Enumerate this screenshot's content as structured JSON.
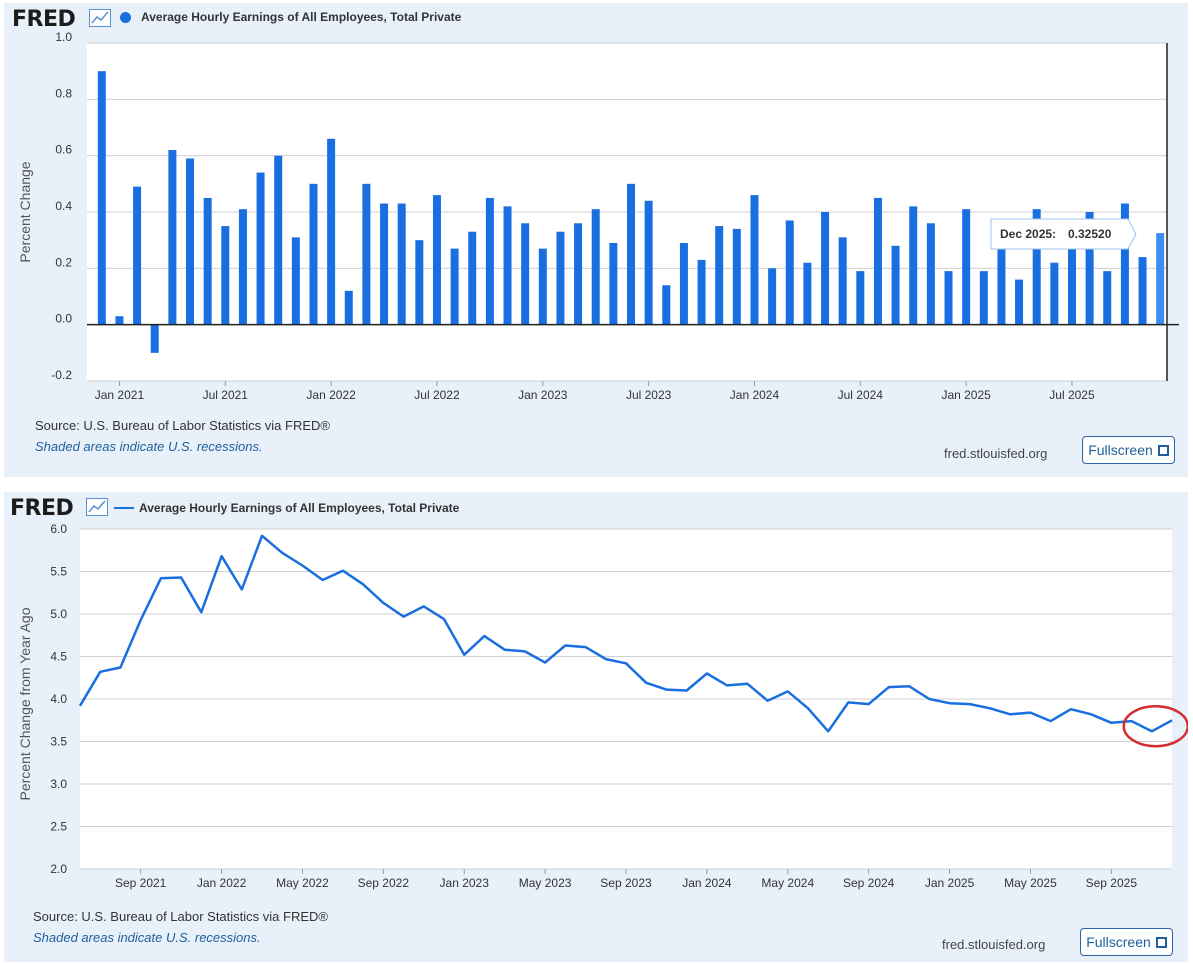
{
  "logo_text": "FRED",
  "site": "fred.stlouisfed.org",
  "source": "Source: U.S. Bureau of Labor Statistics via FRED®",
  "recession_note": "Shaded areas indicate U.S. recessions.",
  "fullscreen_label": "Fullscreen",
  "colors": {
    "series": "#1a6fe0",
    "panel_bg": "#e8f1fa",
    "highlight_circle": "#d42d2d"
  },
  "chart_data": [
    {
      "type": "bar",
      "title": "Average Hourly Earnings of All Employees, Total Private",
      "ylabel": "Percent Change",
      "xlabel": "",
      "ylim": [
        -0.2,
        1.0
      ],
      "yticks": [
        1.0,
        0.8,
        0.6,
        0.4,
        0.2,
        0.0,
        -0.2
      ],
      "ytick_labels": [
        "1.0",
        "0.8",
        "0.6",
        "0.4",
        "0.2",
        "0.0",
        "-0.2"
      ],
      "grid": true,
      "legend": "top-left",
      "x_tick_labels": [
        {
          "label": "Jan 2021",
          "index": 1
        },
        {
          "label": "Jul 2021",
          "index": 7
        },
        {
          "label": "Jan 2022",
          "index": 13
        },
        {
          "label": "Jul 2022",
          "index": 19
        },
        {
          "label": "Jan 2023",
          "index": 25
        },
        {
          "label": "Jul 2023",
          "index": 31
        },
        {
          "label": "Jan 2024",
          "index": 37
        },
        {
          "label": "Jul 2024",
          "index": 43
        },
        {
          "label": "Jan 2025",
          "index": 49
        },
        {
          "label": "Jul 2025",
          "index": 55
        }
      ],
      "start": "Dec 2020",
      "values": [
        0.9,
        0.03,
        0.49,
        -0.1,
        0.62,
        0.59,
        0.45,
        0.35,
        0.41,
        0.54,
        0.6,
        0.31,
        0.5,
        0.66,
        0.12,
        0.5,
        0.43,
        0.43,
        0.3,
        0.46,
        0.27,
        0.33,
        0.45,
        0.42,
        0.36,
        0.27,
        0.33,
        0.36,
        0.41,
        0.29,
        0.5,
        0.44,
        0.14,
        0.29,
        0.23,
        0.35,
        0.34,
        0.46,
        0.2,
        0.37,
        0.22,
        0.4,
        0.31,
        0.19,
        0.45,
        0.28,
        0.42,
        0.36,
        0.19,
        0.41,
        0.19,
        0.29,
        0.16,
        0.41,
        0.22,
        0.29,
        0.4,
        0.19,
        0.43,
        0.24,
        0.3252
      ],
      "tooltip": {
        "label": "Dec 2025:",
        "value": "0.32520"
      }
    },
    {
      "type": "line",
      "title": "Average Hourly Earnings of All Employees, Total Private",
      "ylabel": "Percent Change from Year Ago",
      "xlabel": "",
      "ylim": [
        2.0,
        6.0
      ],
      "yticks": [
        6.0,
        5.5,
        5.0,
        4.5,
        4.0,
        3.5,
        3.0,
        2.5,
        2.0
      ],
      "ytick_labels": [
        "6.0",
        "5.5",
        "5.0",
        "4.5",
        "4.0",
        "3.5",
        "3.0",
        "2.5",
        "2.0"
      ],
      "grid": true,
      "legend": "top-left",
      "x_tick_labels": [
        {
          "label": "Sep 2021",
          "index": 3
        },
        {
          "label": "Jan 2022",
          "index": 7
        },
        {
          "label": "May 2022",
          "index": 11
        },
        {
          "label": "Sep 2022",
          "index": 15
        },
        {
          "label": "Jan 2023",
          "index": 19
        },
        {
          "label": "May 2023",
          "index": 23
        },
        {
          "label": "Sep 2023",
          "index": 27
        },
        {
          "label": "Jan 2024",
          "index": 31
        },
        {
          "label": "May 2024",
          "index": 35
        },
        {
          "label": "Sep 2024",
          "index": 39
        },
        {
          "label": "Jan 2025",
          "index": 43
        },
        {
          "label": "May 2025",
          "index": 47
        },
        {
          "label": "Sep 2025",
          "index": 51
        }
      ],
      "start": "Jun 2021",
      "values": [
        3.92,
        4.32,
        4.37,
        4.93,
        5.42,
        5.43,
        5.02,
        5.68,
        5.29,
        5.92,
        5.72,
        5.57,
        5.4,
        5.51,
        5.35,
        5.13,
        4.97,
        5.09,
        4.94,
        4.52,
        4.74,
        4.58,
        4.56,
        4.43,
        4.63,
        4.61,
        4.47,
        4.42,
        4.19,
        4.11,
        4.1,
        4.3,
        4.16,
        4.18,
        3.98,
        4.09,
        3.89,
        3.62,
        3.96,
        3.94,
        4.14,
        4.15,
        4.0,
        3.95,
        3.94,
        3.89,
        3.82,
        3.84,
        3.74,
        3.88,
        3.82,
        3.72,
        3.74,
        3.62,
        3.75
      ],
      "annotation": "red circle around final months"
    }
  ]
}
